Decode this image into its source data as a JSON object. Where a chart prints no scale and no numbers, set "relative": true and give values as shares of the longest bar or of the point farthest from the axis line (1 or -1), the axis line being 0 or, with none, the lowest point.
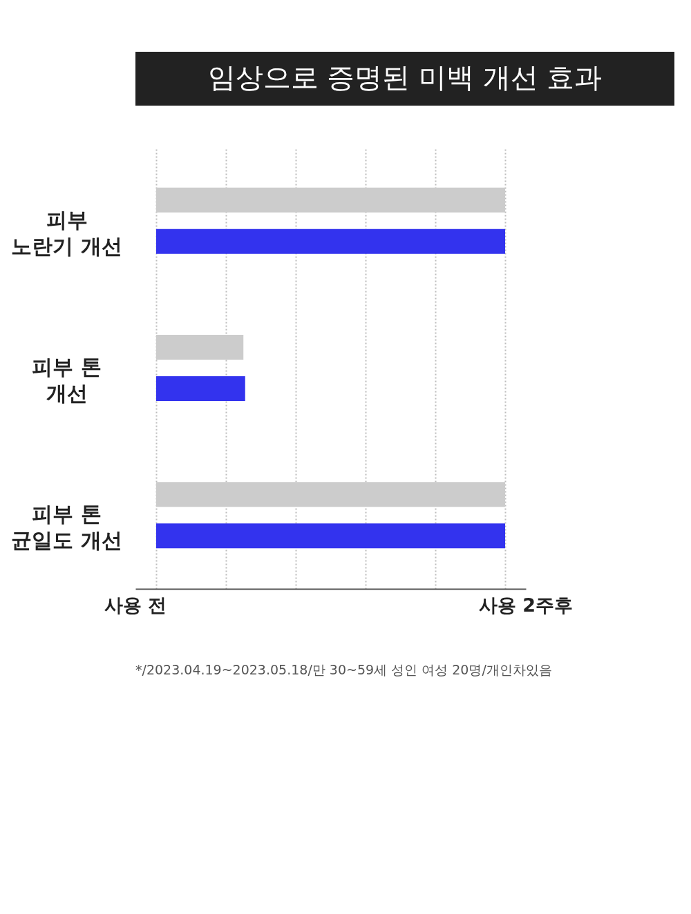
{
  "chart_data": {
    "type": "bar",
    "orientation": "horizontal",
    "relative": true,
    "title": "임상으로 증명된 미백 개선 효과",
    "categories": [
      "피부\n노란기 개선",
      "피부 톤\n개선",
      "피부 톤\n균일도 개선"
    ],
    "series": [
      {
        "color": "#cccccc",
        "values": [
          1.0,
          0.25,
          1.0
        ]
      },
      {
        "color": "#3333ee",
        "values": [
          1.0,
          0.255,
          1.0
        ]
      }
    ],
    "grid": "x",
    "legend": false,
    "annotations": [
      "사용 전",
      "사용 2주후",
      "*/2023.04.19~2023.05.18/만 30~59세 성인 여성 20명/개인차있음"
    ]
  }
}
